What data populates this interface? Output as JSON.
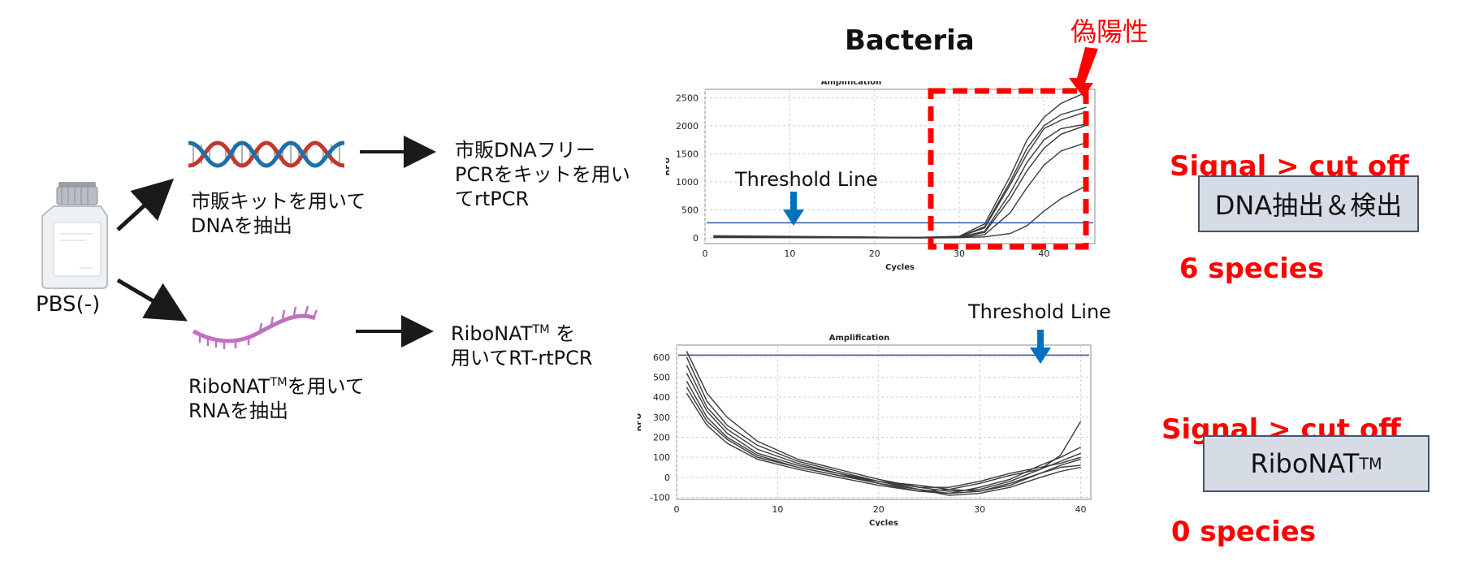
{
  "top_title": "Bacteria",
  "false_positive_label": "偽陽性",
  "pbs_label": "PBS(-)",
  "dna_branch": {
    "extract_line1": "市販キットを用いて",
    "extract_line2": "DNAを抽出",
    "pcr_line1": "市販DNAフリー",
    "pcr_line2": "PCRをキットを用い",
    "pcr_line3": "てrtPCR"
  },
  "rna_branch": {
    "extract_line1_pre": "RiboNAT",
    "extract_line1_sup": "TM",
    "extract_line1_post": "を用いて",
    "extract_line2": "RNAを抽出",
    "pcr_line1_pre": "RiboNAT",
    "pcr_line1_sup": "TM",
    "pcr_line1_post": " を",
    "pcr_line2": "用いてRT-rtPCR"
  },
  "results": {
    "top_signal": "Signal > cut off",
    "top_species": " 6 species",
    "top_method": "DNA抽出＆検出",
    "bottom_signal": "Signal > cut off",
    "bottom_species": " 0 species",
    "bottom_method_pre": "RiboNAT",
    "bottom_method_sup": "TM"
  },
  "threshold_label_top": "Threshold Line",
  "threshold_label_bottom": "Threshold Line",
  "colors": {
    "red": "#ff0000",
    "blue": "#0070c0",
    "dna_red": "#c0392b",
    "dna_blue": "#1f6fa8",
    "rna": "#c070c0",
    "box_fill": "#d6dce5"
  },
  "chart_data": [
    {
      "type": "line",
      "title": "Amplification",
      "xlabel": "Cycles",
      "ylabel": "RFU",
      "xlim": [
        0,
        46
      ],
      "ylim": [
        -100,
        2650
      ],
      "xticks": [
        0,
        10,
        20,
        30,
        40
      ],
      "yticks": [
        0,
        500,
        1000,
        1500,
        2000,
        2500
      ],
      "grid": true,
      "threshold": 270,
      "series": [
        {
          "x": [
            1,
            25,
            30,
            33,
            36,
            38,
            40,
            42,
            45
          ],
          "y": [
            40,
            10,
            30,
            250,
            1100,
            1750,
            2150,
            2400,
            2600
          ]
        },
        {
          "x": [
            1,
            25,
            30,
            33,
            36,
            38,
            40,
            42,
            45
          ],
          "y": [
            30,
            10,
            20,
            200,
            1000,
            1600,
            2000,
            2200,
            2330
          ]
        },
        {
          "x": [
            1,
            25,
            30,
            33,
            36,
            38,
            40,
            42,
            45
          ],
          "y": [
            20,
            10,
            20,
            180,
            950,
            1500,
            1950,
            2100,
            2250
          ]
        },
        {
          "x": [
            1,
            25,
            30,
            33,
            36,
            38,
            40,
            42,
            45
          ],
          "y": [
            30,
            10,
            15,
            120,
            800,
            1350,
            1750,
            1950,
            2030
          ]
        },
        {
          "x": [
            1,
            25,
            30,
            33,
            36,
            38,
            40,
            42,
            45
          ],
          "y": [
            10,
            5,
            15,
            100,
            700,
            1200,
            1600,
            1850,
            2010
          ]
        },
        {
          "x": [
            1,
            25,
            30,
            33,
            36,
            38,
            40,
            42,
            45
          ],
          "y": [
            20,
            5,
            10,
            60,
            450,
            900,
            1300,
            1550,
            1700
          ]
        },
        {
          "x": [
            1,
            25,
            30,
            33,
            36,
            38,
            40,
            42,
            45
          ],
          "y": [
            10,
            0,
            5,
            20,
            80,
            220,
            480,
            700,
            930
          ]
        }
      ]
    },
    {
      "type": "line",
      "title": "Amplification",
      "xlabel": "Cycles",
      "ylabel": "RFU",
      "xlim": [
        0,
        41
      ],
      "ylim": [
        -110,
        660
      ],
      "xticks": [
        0,
        10,
        20,
        30,
        40
      ],
      "yticks": [
        -100,
        0,
        100,
        200,
        300,
        400,
        500,
        600
      ],
      "grid": true,
      "threshold": 610,
      "series": [
        {
          "x": [
            1,
            3,
            5,
            8,
            12,
            16,
            20,
            24,
            27,
            30,
            33,
            36,
            38,
            40
          ],
          "y": [
            630,
            420,
            300,
            180,
            90,
            40,
            -10,
            -50,
            -70,
            -60,
            -20,
            40,
            110,
            280
          ]
        },
        {
          "x": [
            1,
            3,
            5,
            8,
            12,
            16,
            20,
            24,
            27,
            30,
            33,
            36,
            38,
            40
          ],
          "y": [
            600,
            380,
            260,
            160,
            80,
            30,
            -20,
            -60,
            -80,
            -50,
            -10,
            60,
            100,
            150
          ]
        },
        {
          "x": [
            1,
            3,
            5,
            8,
            12,
            16,
            20,
            24,
            27,
            30,
            33,
            36,
            38,
            40
          ],
          "y": [
            560,
            350,
            240,
            140,
            70,
            20,
            -30,
            -70,
            -60,
            -30,
            10,
            40,
            80,
            120
          ]
        },
        {
          "x": [
            1,
            3,
            5,
            8,
            12,
            16,
            20,
            24,
            27,
            30,
            33,
            36,
            38,
            40
          ],
          "y": [
            520,
            330,
            220,
            120,
            60,
            20,
            -20,
            -50,
            -50,
            -20,
            20,
            50,
            70,
            100
          ]
        },
        {
          "x": [
            1,
            3,
            5,
            8,
            12,
            16,
            20,
            24,
            27,
            30,
            33,
            36,
            38,
            40
          ],
          "y": [
            480,
            300,
            200,
            110,
            50,
            10,
            -20,
            -40,
            -60,
            -70,
            -40,
            20,
            60,
            90
          ]
        },
        {
          "x": [
            1,
            3,
            5,
            8,
            12,
            16,
            20,
            24,
            27,
            30,
            33,
            36,
            38,
            40
          ],
          "y": [
            450,
            280,
            190,
            100,
            50,
            10,
            -30,
            -60,
            -90,
            -80,
            -50,
            0,
            30,
            50
          ]
        },
        {
          "x": [
            1,
            3,
            5,
            8,
            12,
            16,
            20,
            24,
            27,
            30,
            33,
            36,
            38,
            40
          ],
          "y": [
            420,
            260,
            170,
            90,
            40,
            0,
            -40,
            -70,
            -80,
            -70,
            -30,
            20,
            50,
            60
          ]
        }
      ]
    }
  ]
}
